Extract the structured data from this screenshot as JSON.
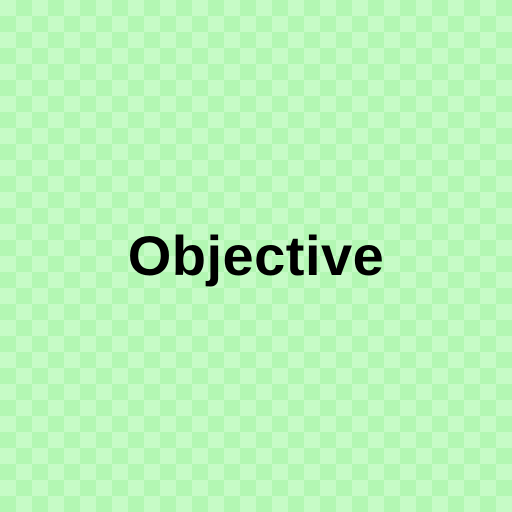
{
  "label": {
    "text": "Objective"
  },
  "colors": {
    "background_light": "#c6fbc6",
    "background_dark": "#b3f7b3",
    "text": "#000000"
  }
}
